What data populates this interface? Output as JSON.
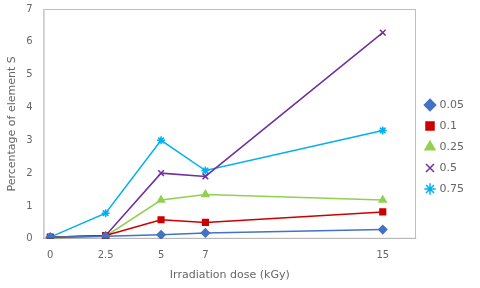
{
  "chart_data": {
    "type": "line",
    "x": [
      0,
      2.5,
      5,
      7,
      15
    ],
    "series": [
      {
        "name": "0.05",
        "color": "#4472C4",
        "marker": "diamond",
        "values": [
          0.05,
          0.08,
          0.12,
          0.18,
          0.28
        ]
      },
      {
        "name": "0.1",
        "color": "#CC0000",
        "marker": "square",
        "values": [
          0.05,
          0.1,
          0.58,
          0.5,
          0.82
        ]
      },
      {
        "name": "0.25",
        "color": "#92D050",
        "marker": "triangle",
        "values": [
          0.02,
          0.08,
          1.18,
          1.35,
          1.18
        ]
      },
      {
        "name": "0.5",
        "color": "#7030A0",
        "marker": "x",
        "values": [
          0.05,
          0.1,
          2.0,
          1.9,
          6.28
        ]
      },
      {
        "name": "0.75",
        "color": "#00B0F0",
        "marker": "star",
        "values": [
          0.05,
          0.78,
          3.0,
          2.08,
          3.3
        ]
      }
    ],
    "xlabel": "Irradiation dose (kGy)",
    "ylabel": "Percentage of element S",
    "xlim": [
      -0.3,
      16.5
    ],
    "ylim": [
      0,
      7
    ],
    "xticks": [
      0,
      2.5,
      5,
      7,
      15
    ],
    "yticks": [
      0,
      1,
      2,
      3,
      4,
      5,
      6,
      7
    ],
    "grid": false,
    "legend": "right"
  }
}
